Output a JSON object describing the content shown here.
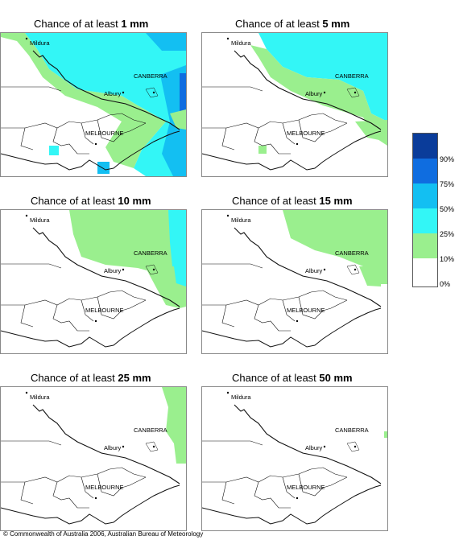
{
  "panels": [
    {
      "prefix": "Chance of at least ",
      "amount": "1 mm"
    },
    {
      "prefix": "Chance of at least ",
      "amount": "5 mm"
    },
    {
      "prefix": "Chance of at least ",
      "amount": "10 mm"
    },
    {
      "prefix": "Chance of at least ",
      "amount": "15 mm"
    },
    {
      "prefix": "Chance of at least ",
      "amount": "25 mm"
    },
    {
      "prefix": "Chance of at least ",
      "amount": "50 mm"
    }
  ],
  "cities": {
    "mildura": "Mildura",
    "canberra": "CANBERRA",
    "albury": "Albury",
    "melbourne": "MELBOURNE"
  },
  "legend": {
    "labels": [
      "90%",
      "75%",
      "50%",
      "25%",
      "10%",
      "0%"
    ],
    "colors": [
      "#0a3c9a",
      "#0f6de0",
      "#13bff2",
      "#33f6f6",
      "#9aef8e",
      "#ffffff"
    ]
  },
  "credit": "© Commonwealth of Australia 2006, Australian Bureau of Meteorology"
}
